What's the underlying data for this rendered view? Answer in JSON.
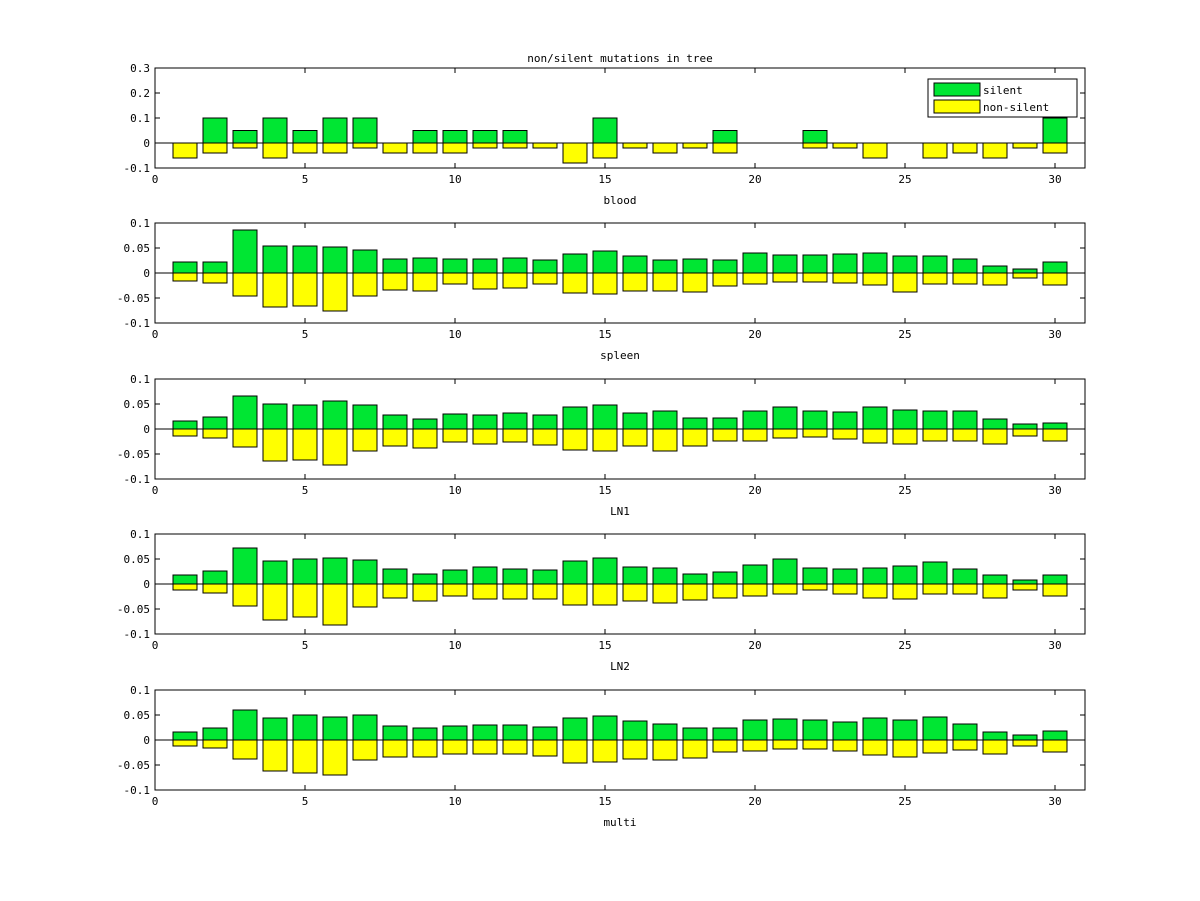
{
  "colors": {
    "silent": "#00e633",
    "non_silent": "#ffff00",
    "axis": "#000000"
  },
  "chart_data": {
    "type": "bar",
    "title": "non/silent mutations in tree",
    "legend": {
      "entries": [
        "silent",
        "non-silent"
      ],
      "placement": "top-right",
      "subplot": 0
    },
    "x": [
      1,
      2,
      3,
      4,
      5,
      6,
      7,
      8,
      9,
      10,
      11,
      12,
      13,
      14,
      15,
      16,
      17,
      18,
      19,
      20,
      21,
      22,
      23,
      24,
      25,
      26,
      27,
      28,
      29,
      30
    ],
    "xlim": [
      0,
      31
    ],
    "xticks": [
      0,
      5,
      10,
      15,
      20,
      25,
      30
    ],
    "subplots": [
      {
        "xlabel": "blood",
        "ylim": [
          -0.1,
          0.3
        ],
        "yticks": [
          -0.1,
          0,
          0.1,
          0.2,
          0.3
        ],
        "ytick_labels": [
          "-0.1",
          "0",
          "0.1",
          "0.2",
          "0.3"
        ],
        "series": [
          {
            "name": "silent",
            "values": [
              0,
              0.1,
              0.05,
              0.1,
              0.05,
              0.1,
              0.1,
              0,
              0.05,
              0.05,
              0.05,
              0.05,
              0,
              0,
              0.1,
              0,
              0,
              0,
              0.05,
              0,
              0,
              0.05,
              0,
              0,
              0,
              0,
              0,
              0,
              0,
              0.1
            ]
          },
          {
            "name": "non-silent",
            "values": [
              -0.06,
              -0.04,
              -0.02,
              -0.06,
              -0.04,
              -0.04,
              -0.02,
              -0.04,
              -0.04,
              -0.04,
              -0.02,
              -0.02,
              -0.02,
              -0.08,
              -0.06,
              -0.02,
              -0.04,
              -0.02,
              -0.04,
              0,
              0,
              -0.02,
              -0.02,
              -0.06,
              0,
              -0.06,
              -0.04,
              -0.06,
              -0.02,
              -0.04
            ]
          }
        ]
      },
      {
        "xlabel": "spleen",
        "ylim": [
          -0.1,
          0.1
        ],
        "yticks": [
          -0.1,
          -0.05,
          0,
          0.05,
          0.1
        ],
        "ytick_labels": [
          "-0.1",
          "-0.05",
          "0",
          "0.05",
          "0.1"
        ],
        "series": [
          {
            "name": "silent",
            "values": [
              0.022,
              0.022,
              0.086,
              0.054,
              0.054,
              0.052,
              0.046,
              0.028,
              0.03,
              0.028,
              0.028,
              0.03,
              0.026,
              0.038,
              0.044,
              0.034,
              0.026,
              0.028,
              0.026,
              0.04,
              0.036,
              0.036,
              0.038,
              0.04,
              0.034,
              0.034,
              0.028,
              0.014,
              0.008,
              0.022
            ]
          },
          {
            "name": "non-silent",
            "values": [
              -0.016,
              -0.02,
              -0.046,
              -0.068,
              -0.066,
              -0.076,
              -0.046,
              -0.034,
              -0.036,
              -0.022,
              -0.032,
              -0.03,
              -0.022,
              -0.04,
              -0.042,
              -0.036,
              -0.036,
              -0.038,
              -0.026,
              -0.022,
              -0.018,
              -0.018,
              -0.02,
              -0.024,
              -0.038,
              -0.022,
              -0.022,
              -0.024,
              -0.01,
              -0.024
            ]
          }
        ]
      },
      {
        "xlabel": "LN1",
        "ylim": [
          -0.1,
          0.1
        ],
        "yticks": [
          -0.1,
          -0.05,
          0,
          0.05,
          0.1
        ],
        "ytick_labels": [
          "-0.1",
          "-0.05",
          "0",
          "0.05",
          "0.1"
        ],
        "series": [
          {
            "name": "silent",
            "values": [
              0.016,
              0.024,
              0.066,
              0.05,
              0.048,
              0.056,
              0.048,
              0.028,
              0.02,
              0.03,
              0.028,
              0.032,
              0.028,
              0.044,
              0.048,
              0.032,
              0.036,
              0.022,
              0.022,
              0.036,
              0.044,
              0.036,
              0.034,
              0.044,
              0.038,
              0.036,
              0.036,
              0.02,
              0.01,
              0.012
            ]
          },
          {
            "name": "non-silent",
            "values": [
              -0.014,
              -0.018,
              -0.036,
              -0.064,
              -0.062,
              -0.072,
              -0.044,
              -0.034,
              -0.038,
              -0.026,
              -0.03,
              -0.026,
              -0.032,
              -0.042,
              -0.044,
              -0.034,
              -0.044,
              -0.034,
              -0.024,
              -0.024,
              -0.018,
              -0.016,
              -0.02,
              -0.028,
              -0.03,
              -0.024,
              -0.024,
              -0.03,
              -0.014,
              -0.024
            ]
          }
        ]
      },
      {
        "xlabel": "LN2",
        "ylim": [
          -0.1,
          0.1
        ],
        "yticks": [
          -0.1,
          -0.05,
          0,
          0.05,
          0.1
        ],
        "ytick_labels": [
          "-0.1",
          "-0.05",
          "0",
          "0.05",
          "0.1"
        ],
        "series": [
          {
            "name": "silent",
            "values": [
              0.018,
              0.026,
              0.072,
              0.046,
              0.05,
              0.052,
              0.048,
              0.03,
              0.02,
              0.028,
              0.034,
              0.03,
              0.028,
              0.046,
              0.052,
              0.034,
              0.032,
              0.02,
              0.024,
              0.038,
              0.05,
              0.032,
              0.03,
              0.032,
              0.036,
              0.044,
              0.03,
              0.018,
              0.008,
              0.018
            ]
          },
          {
            "name": "non-silent",
            "values": [
              -0.012,
              -0.018,
              -0.044,
              -0.072,
              -0.066,
              -0.082,
              -0.046,
              -0.028,
              -0.034,
              -0.024,
              -0.03,
              -0.03,
              -0.03,
              -0.042,
              -0.042,
              -0.034,
              -0.038,
              -0.032,
              -0.028,
              -0.024,
              -0.02,
              -0.012,
              -0.02,
              -0.028,
              -0.03,
              -0.02,
              -0.02,
              -0.028,
              -0.012,
              -0.024
            ]
          }
        ]
      },
      {
        "xlabel": "multi",
        "ylim": [
          -0.1,
          0.1
        ],
        "yticks": [
          -0.1,
          -0.05,
          0,
          0.05,
          0.1
        ],
        "ytick_labels": [
          "-0.1",
          "-0.05",
          "0",
          "0.05",
          "0.1"
        ],
        "series": [
          {
            "name": "silent",
            "values": [
              0.016,
              0.024,
              0.06,
              0.044,
              0.05,
              0.046,
              0.05,
              0.028,
              0.024,
              0.028,
              0.03,
              0.03,
              0.026,
              0.044,
              0.048,
              0.038,
              0.032,
              0.024,
              0.024,
              0.04,
              0.042,
              0.04,
              0.036,
              0.044,
              0.04,
              0.046,
              0.032,
              0.016,
              0.01,
              0.018
            ]
          },
          {
            "name": "non-silent",
            "values": [
              -0.012,
              -0.016,
              -0.038,
              -0.062,
              -0.066,
              -0.07,
              -0.04,
              -0.034,
              -0.034,
              -0.028,
              -0.028,
              -0.028,
              -0.032,
              -0.046,
              -0.044,
              -0.038,
              -0.04,
              -0.036,
              -0.024,
              -0.022,
              -0.018,
              -0.018,
              -0.022,
              -0.03,
              -0.034,
              -0.026,
              -0.02,
              -0.028,
              -0.012,
              -0.024
            ]
          }
        ]
      }
    ]
  }
}
